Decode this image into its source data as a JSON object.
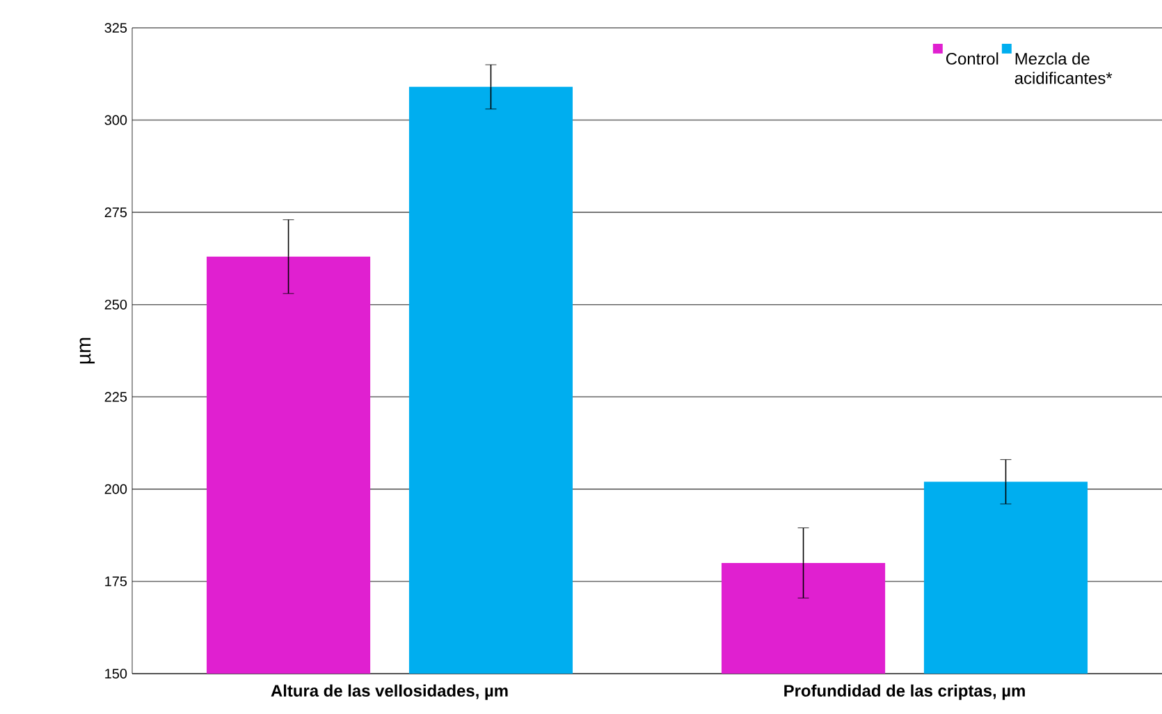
{
  "chart_data": {
    "type": "bar",
    "ylabel": "µm",
    "categories": [
      "Altura de las vellosidades, µm",
      "Profundidad de las criptas, µm"
    ],
    "series": [
      {
        "name": "Control",
        "color": "#e020d0",
        "values": [
          263,
          180
        ],
        "errors": [
          10,
          9.5
        ]
      },
      {
        "name": "Mezcla de acidificantes*",
        "color": "#00aeef",
        "values": [
          309,
          202
        ],
        "errors": [
          6,
          6
        ]
      }
    ],
    "ylim": [
      150,
      325
    ],
    "yticks": [
      150,
      175,
      200,
      225,
      250,
      275,
      300,
      325
    ],
    "grid": "y",
    "legend": "top right"
  }
}
